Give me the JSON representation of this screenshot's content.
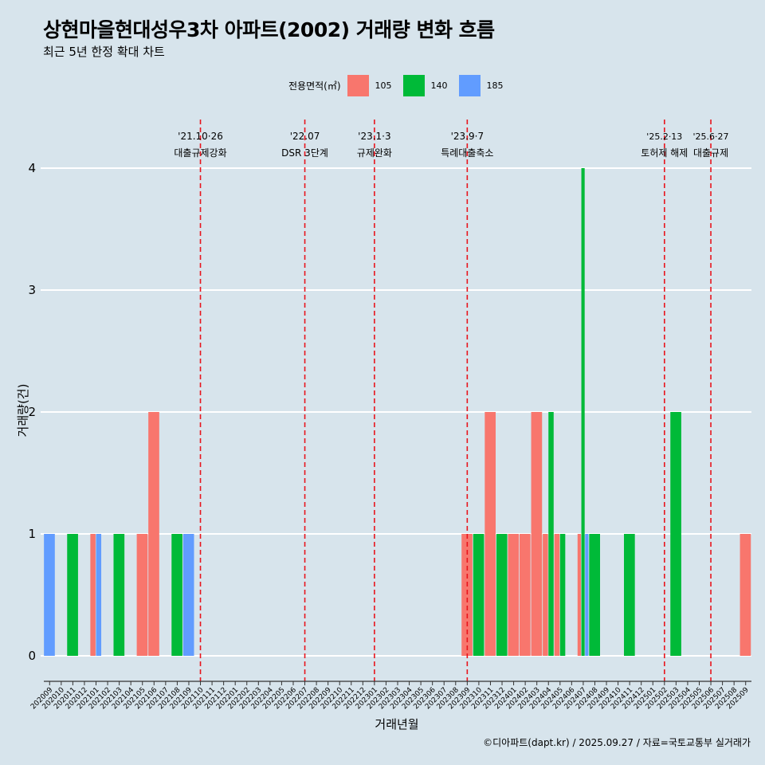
{
  "chart_data": {
    "type": "bar",
    "title": "상현마을현대성우3차 아파트(2002) 거래량 변화 흐름",
    "subtitle": "최근 5년 한정 확대 차트",
    "xlabel": "거래년월",
    "ylabel": "거래량(건)",
    "legend_title": "전용면적(㎡)",
    "caption": "©디아파트(dapt.kr) / 2025.09.27 / 자료=국토교통부 실거래가",
    "ylim": [
      0,
      4
    ],
    "yticks": [
      0,
      1,
      2,
      3,
      4
    ],
    "categories": [
      "202009",
      "202010",
      "202011",
      "202012",
      "202101",
      "202102",
      "202103",
      "202104",
      "202105",
      "202106",
      "202107",
      "202108",
      "202109",
      "202110",
      "202111",
      "202112",
      "202201",
      "202202",
      "202203",
      "202204",
      "202205",
      "202206",
      "202207",
      "202208",
      "202209",
      "202210",
      "202211",
      "202212",
      "202301",
      "202302",
      "202303",
      "202304",
      "202305",
      "202306",
      "202307",
      "202308",
      "202309",
      "202310",
      "202311",
      "202312",
      "202401",
      "202402",
      "202403",
      "202404",
      "202405",
      "202406",
      "202407",
      "202408",
      "202409",
      "202410",
      "202411",
      "202412",
      "202501",
      "202502",
      "202503",
      "202504",
      "202505",
      "202506",
      "202507",
      "202508",
      "202509"
    ],
    "series": [
      {
        "name": "105",
        "color": "#f8766d",
        "data": {
          "202101": 1,
          "202105": 1,
          "202106": 2,
          "202309": 1,
          "202311": 2,
          "202401": 1,
          "202402": 1,
          "202403": 2,
          "202404": 1,
          "202405": 1,
          "202407": 1,
          "202509": 1
        }
      },
      {
        "name": "140",
        "color": "#00ba38",
        "data": {
          "202011": 1,
          "202103": 1,
          "202108": 1,
          "202310": 1,
          "202312": 1,
          "202404": 2,
          "202405": 1,
          "202407": 4,
          "202408": 1,
          "202411": 1,
          "202503": 2
        }
      },
      {
        "name": "185",
        "color": "#619cff",
        "data": {
          "202009": 1,
          "202101": 1,
          "202109": 1,
          "202407": 1
        }
      }
    ],
    "events": [
      {
        "at": "202110",
        "date": "'21.10·26",
        "label": "대출규제강화"
      },
      {
        "at": "202207",
        "date": "'22.07",
        "label": "DSR 3단계"
      },
      {
        "at": "202301",
        "date": "'23.1·3",
        "label": "규제완화"
      },
      {
        "at": "202309",
        "date": "'23.9·7",
        "label": "특례대출축소"
      },
      {
        "at": "202502",
        "date": "'25.2·13",
        "label": "토허제 해제"
      },
      {
        "at": "202506",
        "date": "'25.6·27",
        "label": "대출규제"
      }
    ]
  }
}
